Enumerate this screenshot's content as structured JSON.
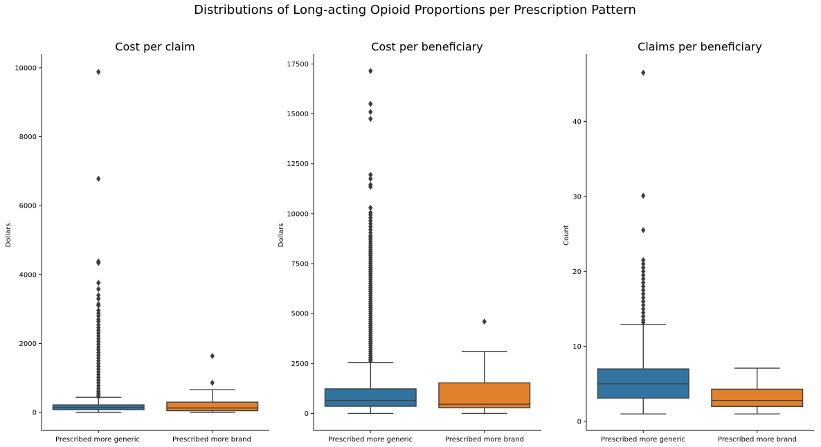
{
  "figure": {
    "suptitle": "Distributions of Long-acting Opioid Proportions per Prescription Pattern"
  },
  "colors": {
    "generic": "#3274a1",
    "brand": "#e1812c",
    "edge": "#3f3f3f"
  },
  "chart_data": [
    {
      "type": "box",
      "title": "Cost per claim",
      "ylabel": "Dollars",
      "xlabel": "",
      "categories": [
        "Prescribed more generic",
        "Prescribed more brand"
      ],
      "ylim": [
        -520,
        10400
      ],
      "yticks": [
        0,
        2000,
        4000,
        6000,
        8000,
        10000
      ],
      "grid": false,
      "boxes": [
        {
          "q1": 80,
          "median": 140,
          "q3": 220,
          "whisker_low": 0,
          "whisker_high": 440,
          "outliers": [
            9880,
            6780,
            4380,
            4340,
            3760,
            3580,
            3400,
            3300,
            3140,
            3100,
            2960,
            2880,
            2800,
            2700,
            2640,
            2540,
            2460,
            2380,
            2300,
            2220,
            2140,
            2060,
            1980,
            1900,
            1820,
            1740,
            1660,
            1580,
            1500,
            1420,
            1340,
            1260,
            1180,
            1100,
            1020,
            940,
            860,
            780,
            700,
            620,
            560,
            500,
            460
          ]
        },
        {
          "q1": 50,
          "median": 130,
          "q3": 300,
          "whisker_low": 0,
          "whisker_high": 660,
          "outliers": [
            1640,
            860
          ]
        }
      ]
    },
    {
      "type": "box",
      "title": "Cost per beneficiary",
      "ylabel": "Dollars",
      "xlabel": "",
      "categories": [
        "Prescribed more generic",
        "Prescribed more brand"
      ],
      "ylim": [
        -850,
        18000
      ],
      "yticks": [
        0,
        2500,
        5000,
        7500,
        10000,
        12500,
        15000,
        17500
      ],
      "grid": false,
      "boxes": [
        {
          "q1": 360,
          "median": 650,
          "q3": 1230,
          "whisker_low": 0,
          "whisker_high": 2550,
          "outliers": [
            17150,
            15500,
            15100,
            14750,
            11950,
            11750,
            11450,
            11350,
            10300,
            10050,
            9950,
            9800,
            9650,
            9500,
            9350,
            9200,
            9050,
            8900,
            8800,
            8700,
            8600,
            8500,
            8400,
            8300,
            8200,
            8100,
            8000,
            7900,
            7800,
            7700,
            7600,
            7500,
            7400,
            7300,
            7200,
            7100,
            7000,
            6900,
            6800,
            6700,
            6600,
            6500,
            6400,
            6300,
            6200,
            6100,
            6000,
            5900,
            5800,
            5700,
            5600,
            5500,
            5400,
            5300,
            5200,
            5100,
            5000,
            4900,
            4800,
            4700,
            4600,
            4500,
            4400,
            4300,
            4200,
            4100,
            4000,
            3900,
            3800,
            3700,
            3600,
            3500,
            3400,
            3300,
            3200,
            3100,
            3000,
            2900,
            2800,
            2700,
            2620
          ]
        },
        {
          "q1": 280,
          "median": 460,
          "q3": 1530,
          "whisker_low": 0,
          "whisker_high": 3100,
          "outliers": [
            4600
          ]
        }
      ]
    },
    {
      "type": "box",
      "title": "Claims per beneficiary",
      "ylabel": "Count",
      "xlabel": "",
      "categories": [
        "Prescribed more generic",
        "Prescribed more brand"
      ],
      "ylim": [
        -1.2,
        49
      ],
      "yticks": [
        0,
        10,
        20,
        30,
        40
      ],
      "grid": false,
      "boxes": [
        {
          "q1": 3.1,
          "median": 5.0,
          "q3": 7.0,
          "whisker_low": 1,
          "whisker_high": 12.9,
          "outliers": [
            46.5,
            30.1,
            25.5,
            21.5,
            21.0,
            20.5,
            20.0,
            19.5,
            19.0,
            18.5,
            18.0,
            17.5,
            17.0,
            16.5,
            16.0,
            15.5,
            15.0,
            14.5,
            14.0,
            13.5,
            13.2
          ]
        },
        {
          "q1": 2.0,
          "median": 2.8,
          "q3": 4.3,
          "whisker_low": 1,
          "whisker_high": 7.1,
          "outliers": []
        }
      ]
    }
  ]
}
